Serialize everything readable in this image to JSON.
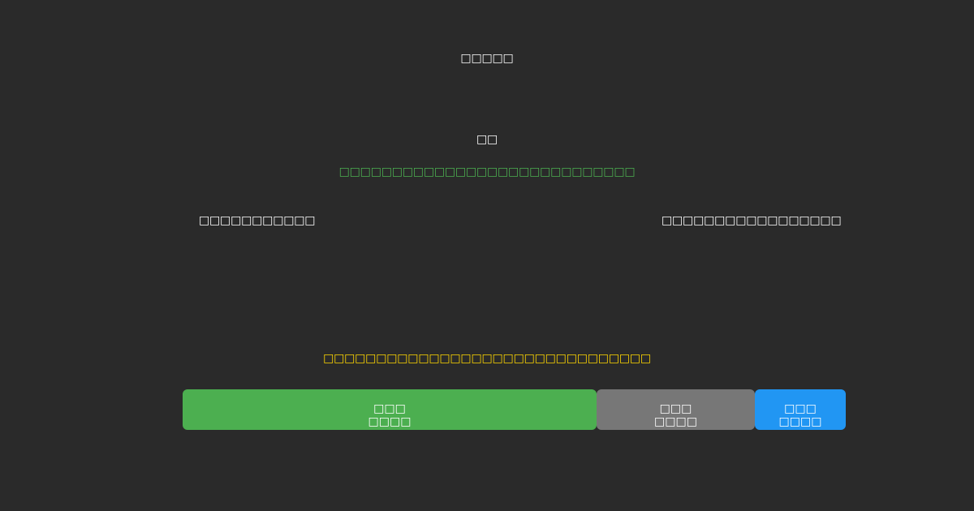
{
  "title": "□□□□□",
  "subtitle": "□□",
  "status_message": "□□□□□□□□□□□□□□□□□□□□□□□□□□□□",
  "left_label": "□□□□□□□□□□□",
  "right_label": "□□□□□□□□□□□□□□□□□",
  "warning_message": "□□□□□□□□□□□□□□□□□□□□□□□□□□□□□□□",
  "colors": {
    "background": "#2a2a2a",
    "status": "#4caf50",
    "warning": "#ffd700",
    "primary": "#4caf50",
    "secondary": "#777777",
    "accent": "#2196f3"
  },
  "buttons": [
    {
      "line1": "□□□",
      "line2": "□□□□"
    },
    {
      "line1": "□□□",
      "line2": "□□□□"
    },
    {
      "line1": "□□□",
      "line2": "□□□□"
    }
  ]
}
